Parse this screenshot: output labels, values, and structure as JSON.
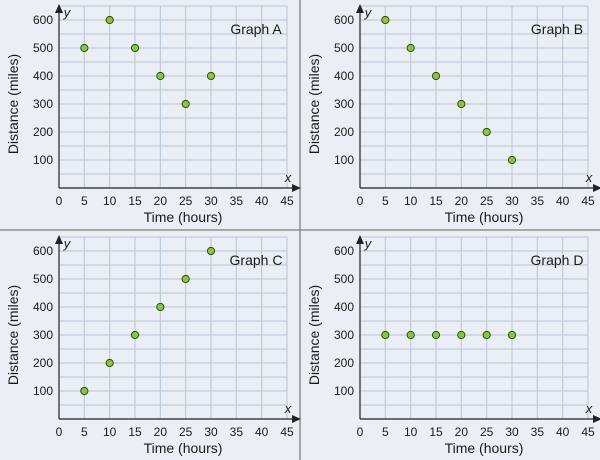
{
  "chart_data": [
    {
      "type": "scatter",
      "title": "Graph A",
      "xlabel": "Time (hours)",
      "ylabel": "Distance (miles)",
      "x_axis_letter": "x",
      "y_axis_letter": "y",
      "xlim": [
        0,
        45
      ],
      "ylim": [
        0,
        600
      ],
      "x_ticks": [
        0,
        5,
        10,
        15,
        20,
        25,
        30,
        35,
        40,
        45
      ],
      "y_ticks": [
        100,
        200,
        300,
        400,
        500,
        600
      ],
      "grid": true,
      "points": [
        [
          5,
          500
        ],
        [
          10,
          600
        ],
        [
          15,
          500
        ],
        [
          20,
          400
        ],
        [
          25,
          300
        ],
        [
          30,
          400
        ]
      ]
    },
    {
      "type": "scatter",
      "title": "Graph B",
      "xlabel": "Time (hours)",
      "ylabel": "Distance (miles)",
      "x_axis_letter": "x",
      "y_axis_letter": "y",
      "xlim": [
        0,
        45
      ],
      "ylim": [
        0,
        600
      ],
      "x_ticks": [
        0,
        5,
        10,
        15,
        20,
        25,
        30,
        35,
        40,
        45
      ],
      "y_ticks": [
        100,
        200,
        300,
        400,
        500,
        600
      ],
      "grid": true,
      "points": [
        [
          5,
          600
        ],
        [
          10,
          500
        ],
        [
          15,
          400
        ],
        [
          20,
          300
        ],
        [
          25,
          200
        ],
        [
          30,
          100
        ]
      ]
    },
    {
      "type": "scatter",
      "title": "Graph C",
      "xlabel": "Time (hours)",
      "ylabel": "Distance (miles)",
      "x_axis_letter": "x",
      "y_axis_letter": "y",
      "xlim": [
        0,
        45
      ],
      "ylim": [
        0,
        600
      ],
      "x_ticks": [
        0,
        5,
        10,
        15,
        20,
        25,
        30,
        35,
        40,
        45
      ],
      "y_ticks": [
        100,
        200,
        300,
        400,
        500,
        600
      ],
      "grid": true,
      "points": [
        [
          5,
          100
        ],
        [
          10,
          200
        ],
        [
          15,
          300
        ],
        [
          20,
          400
        ],
        [
          25,
          500
        ],
        [
          30,
          600
        ]
      ]
    },
    {
      "type": "scatter",
      "title": "Graph D",
      "xlabel": "Time (hours)",
      "ylabel": "Distance (miles)",
      "x_axis_letter": "x",
      "y_axis_letter": "y",
      "xlim": [
        0,
        45
      ],
      "ylim": [
        0,
        600
      ],
      "x_ticks": [
        0,
        5,
        10,
        15,
        20,
        25,
        30,
        35,
        40,
        45
      ],
      "y_ticks": [
        100,
        200,
        300,
        400,
        500,
        600
      ],
      "grid": true,
      "points": [
        [
          5,
          300
        ],
        [
          10,
          300
        ],
        [
          15,
          300
        ],
        [
          20,
          300
        ],
        [
          25,
          300
        ],
        [
          30,
          300
        ]
      ]
    }
  ],
  "colors": {
    "panel_background": "#e9eff4",
    "grid_line": "#b9c6d3",
    "axis_line": "#222222",
    "point_fill": "#8cc63f",
    "point_stroke": "#2f4a12",
    "divider": "#8a8a8a"
  }
}
